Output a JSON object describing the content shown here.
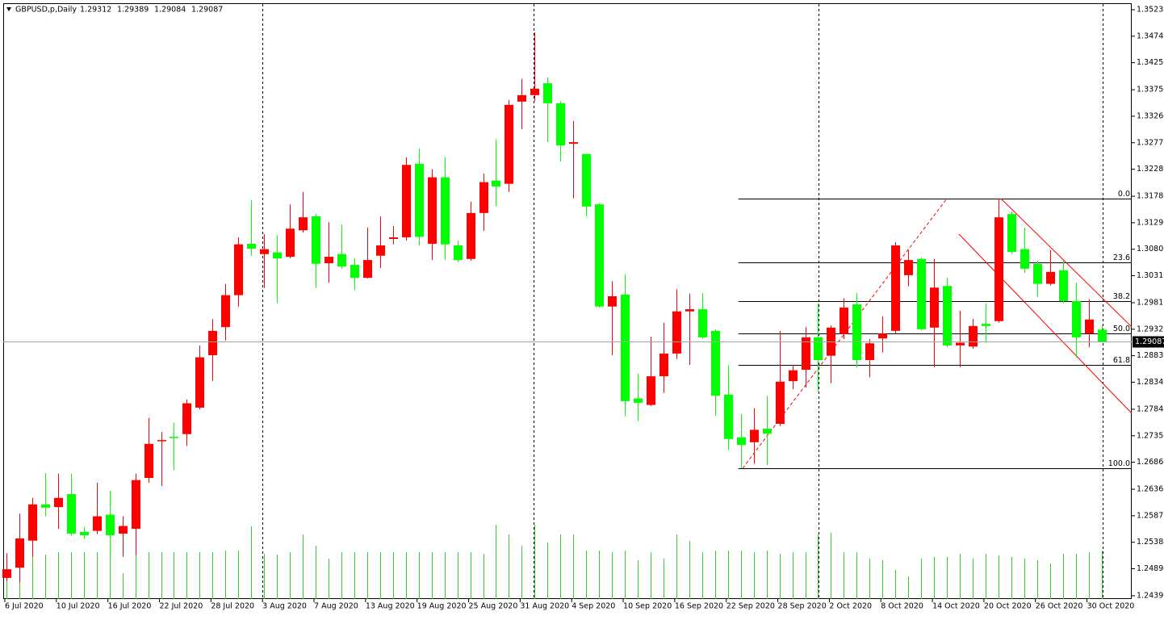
{
  "chart_data": {
    "type": "candlestick",
    "title": "GBPUSD,p,Daily",
    "categories": [
      null,
      "6 Jul 2020",
      null,
      null,
      null,
      "10 Jul 2020",
      null,
      null,
      null,
      "16 Jul 2020",
      null,
      null,
      null,
      "22 Jul 2020",
      null,
      null,
      null,
      "28 Jul 2020",
      null,
      null,
      null,
      "3 Aug 2020",
      null,
      null,
      null,
      "7 Aug 2020",
      null,
      null,
      null,
      "13 Aug 2020",
      null,
      null,
      null,
      "19 Aug 2020",
      null,
      null,
      null,
      "25 Aug 2020",
      null,
      null,
      null,
      "31 Aug 2020",
      null,
      null,
      null,
      "4 Sep 2020",
      null,
      null,
      null,
      "10 Sep 2020",
      null,
      null,
      null,
      "16 Sep 2020",
      null,
      null,
      null,
      "22 Sep 2020",
      null,
      null,
      null,
      "28 Sep 2020",
      null,
      null,
      null,
      "2 Oct 2020",
      null,
      null,
      null,
      "8 Oct 2020",
      null,
      null,
      null,
      "14 Oct 2020",
      null,
      null,
      null,
      "20 Oct 2020",
      null,
      null,
      null,
      "26 Oct 2020",
      null,
      null,
      null,
      "30 Oct 2020"
    ],
    "open": [
      1.2472,
      1.2491,
      1.2541,
      1.2608,
      1.2603,
      1.2627,
      1.2557,
      1.2559,
      1.2589,
      1.2554,
      1.2563,
      1.2657,
      1.2726,
      1.2733,
      1.2738,
      1.2787,
      1.2884,
      1.2936,
      1.2995,
      1.309,
      1.3071,
      1.3074,
      1.3066,
      1.3115,
      1.3141,
      1.3054,
      1.3071,
      1.3051,
      1.3027,
      1.3068,
      1.3099,
      1.3102,
      1.3238,
      1.309,
      1.3213,
      1.3087,
      1.3062,
      1.3147,
      1.3207,
      1.3201,
      1.3353,
      1.3365,
      1.3387,
      1.335,
      1.3275,
      1.3256,
      1.3163,
      1.2974,
      1.2996,
      1.2804,
      1.2792,
      1.2845,
      1.2887,
      1.2965,
      1.2969,
      1.2929,
      1.2811,
      1.2732,
      1.2723,
      1.2748,
      1.2757,
      1.2836,
      1.2857,
      1.2917,
      1.2883,
      1.2923,
      1.2978,
      1.2875,
      1.2915,
      1.2929,
      1.3032,
      1.3062,
      1.2935,
      1.3012,
      1.2902,
      1.29,
      1.2942,
      1.2947,
      1.3145,
      1.308,
      1.3053,
      1.3016,
      1.3041,
      1.2984,
      1.2924,
      1.29312
    ],
    "high": [
      1.2518,
      1.2591,
      1.262,
      1.2666,
      1.2665,
      1.2665,
      1.2566,
      1.2648,
      1.2633,
      1.2586,
      1.2665,
      1.2768,
      1.2742,
      1.2759,
      1.2802,
      1.2902,
      1.2951,
      1.3016,
      1.3102,
      1.3171,
      1.3108,
      1.3106,
      1.3163,
      1.3186,
      1.3145,
      1.313,
      1.3126,
      1.3063,
      1.312,
      1.3141,
      1.3123,
      1.325,
      1.3266,
      1.3228,
      1.325,
      1.3096,
      1.3168,
      1.322,
      1.3283,
      1.3356,
      1.3395,
      1.3481,
      1.3398,
      1.3354,
      1.3317,
      1.3257,
      1.3165,
      1.3021,
      1.3033,
      1.285,
      1.2918,
      1.2944,
      1.3006,
      1.2998,
      1.2999,
      1.2932,
      1.2865,
      1.2775,
      1.2786,
      1.2809,
      1.2929,
      1.2866,
      1.2936,
      1.298,
      1.2939,
      1.2989,
      1.2999,
      1.2914,
      1.2956,
      1.3093,
      1.3078,
      1.3065,
      1.3062,
      1.3027,
      1.2966,
      1.2951,
      1.298,
      1.3174,
      1.315,
      1.312,
      1.3059,
      1.3078,
      1.3059,
      1.3018,
      1.2987,
      1.29389
    ],
    "low": [
      1.2466,
      1.2463,
      1.2511,
      1.2586,
      1.2563,
      1.255,
      1.2544,
      1.2553,
      1.2517,
      1.2511,
      1.2514,
      1.2648,
      1.2642,
      1.2671,
      1.2716,
      1.2784,
      1.2836,
      1.2911,
      1.2974,
      1.3068,
      1.3008,
      1.298,
      1.3063,
      1.3111,
      1.3008,
      1.3018,
      1.3044,
      1.3004,
      1.3026,
      1.3045,
      1.3089,
      1.3096,
      1.3087,
      1.306,
      1.306,
      1.3056,
      1.3059,
      1.3114,
      1.316,
      1.3186,
      1.3302,
      1.3354,
      1.3278,
      1.3242,
      1.3174,
      1.3141,
      1.2972,
      1.2884,
      1.2771,
      1.2762,
      1.279,
      1.2814,
      1.2877,
      1.2866,
      1.2914,
      1.2772,
      1.2709,
      1.2675,
      1.2683,
      1.2681,
      1.2753,
      1.2821,
      1.2824,
      1.2817,
      1.2832,
      1.2914,
      1.2862,
      1.2843,
      1.2889,
      1.2924,
      1.3011,
      1.293,
      1.2862,
      1.2899,
      1.2862,
      1.2896,
      1.2907,
      1.2944,
      1.3071,
      1.3036,
      1.2992,
      1.3013,
      1.298,
      1.288,
      1.2899,
      1.29084
    ],
    "close": [
      1.2488,
      1.2545,
      1.2608,
      1.2602,
      1.262,
      1.2554,
      1.2551,
      1.2586,
      1.2551,
      1.2568,
      1.2653,
      1.272,
      1.2727,
      1.2732,
      1.2795,
      1.288,
      1.2929,
      1.2995,
      1.3089,
      1.3081,
      1.308,
      1.3063,
      1.3118,
      1.3139,
      1.3053,
      1.3066,
      1.3048,
      1.3027,
      1.306,
      1.3087,
      1.3102,
      1.3236,
      1.3103,
      1.3213,
      1.3089,
      1.306,
      1.3147,
      1.3204,
      1.3196,
      1.3347,
      1.3365,
      1.3377,
      1.335,
      1.3272,
      1.3278,
      1.3159,
      1.2974,
      1.2993,
      1.2799,
      1.2796,
      1.2845,
      1.2887,
      1.2965,
      1.2969,
      1.2917,
      1.2809,
      1.2729,
      1.2718,
      1.2746,
      1.2739,
      1.2835,
      1.2856,
      1.2917,
      1.2875,
      1.2935,
      1.2972,
      1.2875,
      1.2906,
      1.2924,
      1.3087,
      1.306,
      1.2932,
      1.3009,
      1.2902,
      1.2907,
      1.2938,
      1.2938,
      1.3139,
      1.3075,
      1.3044,
      1.3016,
      1.3038,
      1.2984,
      1.2917,
      1.295,
      1.29087
    ],
    "volume": [
      56,
      40,
      70,
      55,
      58,
      58,
      58,
      58,
      58,
      32,
      58,
      58,
      58,
      58,
      58,
      58,
      58,
      60,
      60,
      90,
      56,
      55,
      58,
      80,
      66,
      50,
      58,
      58,
      58,
      58,
      58,
      58,
      58,
      58,
      58,
      58,
      58,
      56,
      92,
      80,
      66,
      92,
      70,
      80,
      80,
      60,
      60,
      58,
      60,
      48,
      58,
      50,
      80,
      72,
      58,
      60,
      60,
      60,
      58,
      60,
      56,
      58,
      58,
      80,
      82,
      58,
      58,
      50,
      48,
      36,
      28,
      50,
      52,
      52,
      56,
      50,
      56,
      54,
      52,
      50,
      48,
      44,
      56,
      56,
      58,
      60
    ],
    "up_color": "#ff0000",
    "down_color": "#00ff00",
    "volume_color": "#32cd32",
    "ylim": [
      1.2433,
      1.3535
    ],
    "yticks": [
      {
        "value": 1.3523,
        "label": "1.35230"
      },
      {
        "value": 1.3474,
        "label": "1.34740"
      },
      {
        "value": 1.3425,
        "label": "1.34250"
      },
      {
        "value": 1.3375,
        "label": "1.33750"
      },
      {
        "value": 1.3326,
        "label": "1.33260"
      },
      {
        "value": 1.3277,
        "label": "1.32770"
      },
      {
        "value": 1.3228,
        "label": "1.32280"
      },
      {
        "value": 1.3178,
        "label": "1.31780"
      },
      {
        "value": 1.3129,
        "label": "1.31290"
      },
      {
        "value": 1.308,
        "label": "1.30800"
      },
      {
        "value": 1.3031,
        "label": "1.30310"
      },
      {
        "value": 1.2981,
        "label": "1.29810"
      },
      {
        "value": 1.2932,
        "label": "1.29320"
      },
      {
        "value": 1.2883,
        "label": "1.28830"
      },
      {
        "value": 1.2834,
        "label": "1.28340"
      },
      {
        "value": 1.2784,
        "label": "1.27840"
      },
      {
        "value": 1.2735,
        "label": "1.27350"
      },
      {
        "value": 1.2686,
        "label": "1.26860"
      },
      {
        "value": 1.2636,
        "label": "1.26360"
      },
      {
        "value": 1.2587,
        "label": "1.25870"
      },
      {
        "value": 1.2538,
        "label": "1.25380"
      },
      {
        "value": 1.2489,
        "label": "1.24890"
      },
      {
        "value": 1.2439,
        "label": "1.24390"
      }
    ],
    "fibo": {
      "anchor": 57,
      "high": 1.3174,
      "low": 1.2675,
      "color": "#000000",
      "levels": [
        {
          "value": 0,
          "label": "0.0"
        },
        23.6,
        38.2,
        {
          "value": 50,
          "label": "50.0"
        },
        61.8,
        {
          "value": 100,
          "label": "100.0"
        }
      ]
    }
  }
}
